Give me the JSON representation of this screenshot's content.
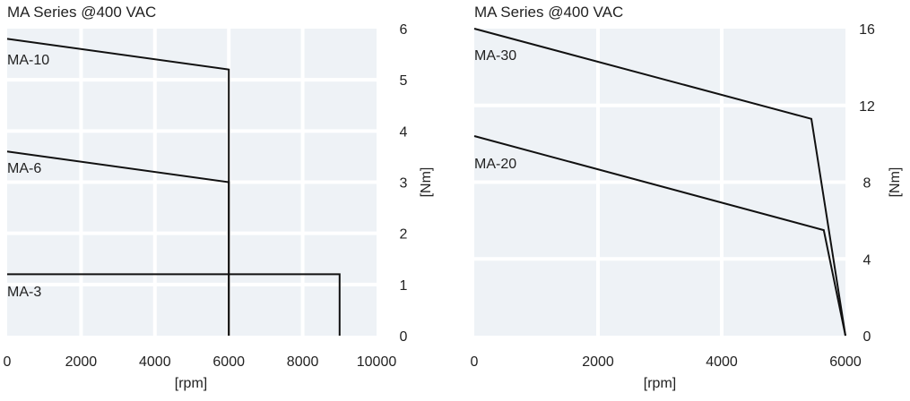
{
  "chart_data": [
    {
      "type": "line",
      "title": "MA Series @400 VAC",
      "xlabel": "[rpm]",
      "ylabel": "[Nm]",
      "xlim": [
        0,
        10000
      ],
      "ylim": [
        0,
        6
      ],
      "xticks": [
        0,
        2000,
        4000,
        6000,
        8000,
        10000
      ],
      "yticks": [
        0,
        1,
        2,
        3,
        4,
        5,
        6
      ],
      "grid": true,
      "yaxis_side": "right",
      "series": [
        {
          "name": "MA-10",
          "x": [
            0,
            6000,
            6000
          ],
          "y": [
            5.8,
            5.2,
            0
          ]
        },
        {
          "name": "MA-6",
          "x": [
            0,
            6000,
            6000
          ],
          "y": [
            3.6,
            3.0,
            0
          ]
        },
        {
          "name": "MA-3",
          "x": [
            0,
            9000,
            9000
          ],
          "y": [
            1.2,
            1.2,
            0
          ]
        }
      ]
    },
    {
      "type": "line",
      "title": "MA Series @400 VAC",
      "xlabel": "[rpm]",
      "ylabel": "[Nm]",
      "xlim": [
        0,
        6000
      ],
      "ylim": [
        0,
        16
      ],
      "xticks": [
        0,
        2000,
        4000,
        6000
      ],
      "yticks": [
        0,
        4,
        8,
        12,
        16
      ],
      "grid": true,
      "yaxis_side": "right",
      "series": [
        {
          "name": "MA-30",
          "x": [
            0,
            5450,
            6000
          ],
          "y": [
            16,
            11.3,
            0
          ]
        },
        {
          "name": "MA-20",
          "x": [
            0,
            5650,
            6000
          ],
          "y": [
            10.4,
            5.5,
            0
          ]
        }
      ]
    }
  ]
}
